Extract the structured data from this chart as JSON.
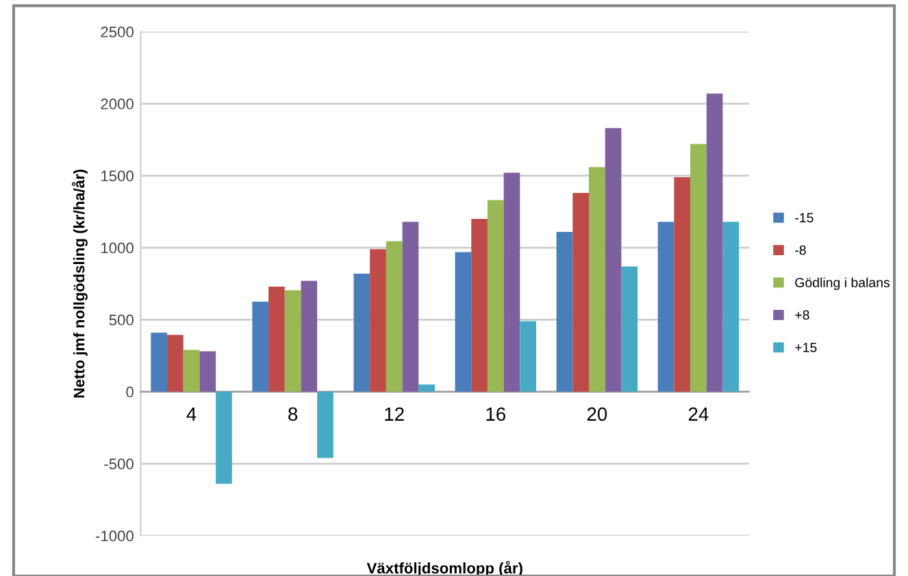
{
  "chart_data": {
    "type": "bar",
    "xlabel": "Växtföljdsomlopp (år)",
    "ylabel": "Netto jmf nollgödsling (kr/ha/år)",
    "categories": [
      "4",
      "8",
      "12",
      "16",
      "20",
      "24"
    ],
    "series": [
      {
        "name": "-15",
        "color": "#4a7ebb",
        "values": [
          410,
          625,
          820,
          970,
          1110,
          1180
        ]
      },
      {
        "name": "-8",
        "color": "#be4b48",
        "values": [
          395,
          730,
          990,
          1200,
          1380,
          1490
        ]
      },
      {
        "name": "Gödling i balans",
        "color": "#98b954",
        "values": [
          290,
          705,
          1045,
          1330,
          1560,
          1720
        ]
      },
      {
        "name": "+8",
        "color": "#7d60a0",
        "values": [
          280,
          770,
          1180,
          1520,
          1830,
          2070
        ]
      },
      {
        "name": "+15",
        "color": "#46aac5",
        "values": [
          -640,
          -460,
          50,
          490,
          870,
          1180
        ]
      }
    ],
    "ylim": [
      -1000,
      2500
    ],
    "yticks": [
      -1000,
      -500,
      0,
      500,
      1000,
      1500,
      2000,
      2500
    ],
    "grid": "y",
    "legend": "right"
  }
}
